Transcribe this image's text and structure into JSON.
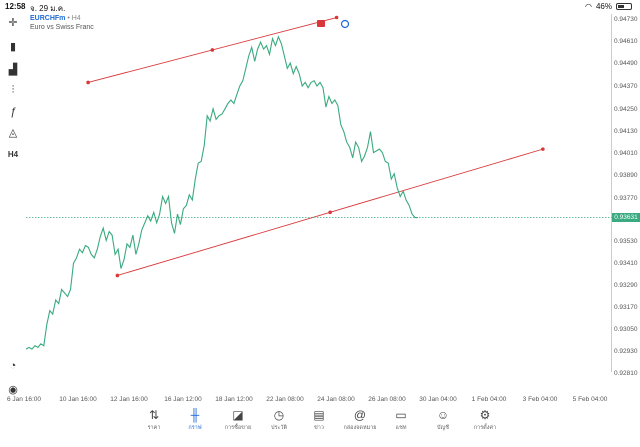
{
  "status": {
    "time": "12:58",
    "date": "จ. 29 ม.ค.",
    "battery": "46%",
    "battery_level": 0.46
  },
  "header": {
    "symbol": "EURCHFm",
    "timeframe": "H4",
    "description": "Euro vs Swiss Franc"
  },
  "toolbar": {
    "timeframe_label": "H4",
    "tools": [
      "crosshair-icon",
      "candles-icon",
      "indicators-icon",
      "objects-icon",
      "function-icon",
      "shapes-icon"
    ]
  },
  "chart_data": {
    "type": "line",
    "series_color": "#3aaa80",
    "price_ticks": [
      "0.94730",
      "0.94610",
      "0.94490",
      "0.94370",
      "0.94250",
      "0.94130",
      "0.94010",
      "0.93890",
      "0.93770",
      "0.93530",
      "0.93410",
      "0.93290",
      "0.93170",
      "0.93050",
      "0.92930",
      "0.92810"
    ],
    "time_ticks": [
      "6 Jan 16:00",
      "10 Jan 16:00",
      "12 Jan 16:00",
      "16 Jan 12:00",
      "18 Jan 12:00",
      "22 Jan 08:00",
      "24 Jan 08:00",
      "26 Jan 08:00",
      "30 Jan 04:00",
      "1 Feb 04:00",
      "3 Feb 04:00",
      "5 Feb 04:00"
    ],
    "current_price": "0.93631",
    "ylim": [
      0.9275,
      0.9479
    ],
    "values": [
      0.9288,
      0.9289,
      0.9288,
      0.929,
      0.9289,
      0.9291,
      0.929,
      0.9302,
      0.931,
      0.9308,
      0.9316,
      0.9314,
      0.9322,
      0.932,
      0.9318,
      0.9322,
      0.9337,
      0.934,
      0.9345,
      0.9343,
      0.9347,
      0.9346,
      0.9342,
      0.934,
      0.9345,
      0.9352,
      0.9357,
      0.935,
      0.9355,
      0.9353,
      0.9342,
      0.9345,
      0.9334,
      0.9339,
      0.9348,
      0.9346,
      0.9353,
      0.9342,
      0.9348,
      0.9356,
      0.936,
      0.9364,
      0.9361,
      0.9366,
      0.936,
      0.9365,
      0.9375,
      0.9371,
      0.9375,
      0.936,
      0.9354,
      0.9365,
      0.9359,
      0.9368,
      0.937,
      0.9376,
      0.9373,
      0.9385,
      0.9394,
      0.9395,
      0.9404,
      0.9421,
      0.9418,
      0.9425,
      0.9419,
      0.9421,
      0.9422,
      0.9425,
      0.9428,
      0.943,
      0.9428,
      0.9433,
      0.9438,
      0.9441,
      0.9448,
      0.9455,
      0.946,
      0.9452,
      0.9459,
      0.9463,
      0.9459,
      0.9461,
      0.9456,
      0.9465,
      0.9461,
      0.9466,
      0.9462,
      0.9455,
      0.9448,
      0.9451,
      0.9445,
      0.9449,
      0.9445,
      0.9438,
      0.944,
      0.9437,
      0.944,
      0.9441,
      0.9438,
      0.944,
      0.9437,
      0.9426,
      0.9432,
      0.9428,
      0.943,
      0.9427,
      0.9416,
      0.9412,
      0.9406,
      0.9403,
      0.9397,
      0.9406,
      0.9403,
      0.9395,
      0.9398,
      0.9403,
      0.9412,
      0.94,
      0.9401,
      0.9402,
      0.94,
      0.9395,
      0.9394,
      0.9385,
      0.9388,
      0.938,
      0.9375,
      0.9378,
      0.9373,
      0.937,
      0.9365,
      0.9363,
      0.9363
    ],
    "trendlines": [
      {
        "x1": 0.106,
        "y1": 0.944,
        "x2": 0.53,
        "y2": 0.9477,
        "mid": 0.318,
        "color": "#d9383a"
      },
      {
        "x1": 0.156,
        "y1": 0.933,
        "x2": 0.882,
        "y2": 0.9402,
        "mid": 0.519,
        "color": "#d9383a"
      }
    ]
  },
  "nav": [
    {
      "label": "ราคา",
      "icon": "quotes-icon",
      "glyph": "⇅"
    },
    {
      "label": "กราฟ",
      "icon": "chart-icon",
      "glyph": "╫",
      "active": true
    },
    {
      "label": "การซื้อขาย",
      "icon": "trade-icon",
      "glyph": "◪"
    },
    {
      "label": "ประวัติ",
      "icon": "history-icon",
      "glyph": "◷"
    },
    {
      "label": "ข่าว",
      "icon": "news-icon",
      "glyph": "▤"
    },
    {
      "label": "กล่องจดหมาย",
      "icon": "mailbox-icon",
      "glyph": "@"
    },
    {
      "label": "แชท",
      "icon": "chat-icon",
      "glyph": "▭"
    },
    {
      "label": "บัญชี",
      "icon": "account-icon",
      "glyph": "☺"
    },
    {
      "label": "การตั้งค่า",
      "icon": "settings-icon",
      "glyph": "⚙"
    }
  ]
}
